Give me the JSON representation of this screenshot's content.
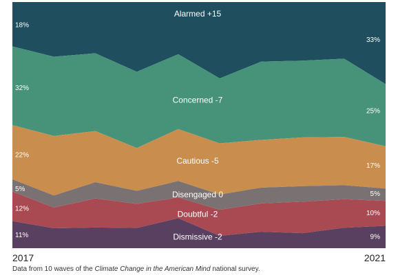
{
  "chart_data": {
    "type": "area",
    "stacked": true,
    "normalized": true,
    "x": [
      1,
      2,
      3,
      4,
      5,
      6,
      7,
      8,
      9,
      10
    ],
    "series": [
      {
        "name": "Alarmed",
        "change_label": "Alarmed +15",
        "color": "#1f4e5e",
        "values": [
          18,
          22.2,
          20.8,
          28.3,
          21.2,
          31,
          24.2,
          23.8,
          23,
          33
        ],
        "start_label": "18%",
        "end_label": "33%"
      },
      {
        "name": "Concerned",
        "change_label": "Concerned -7",
        "color": "#46937a",
        "values": [
          32,
          32.2,
          31.6,
          31,
          30.4,
          26.4,
          31.8,
          31.2,
          31.8,
          25
        ],
        "start_label": "32%",
        "end_label": "25%"
      },
      {
        "name": "Cautious",
        "change_label": "Cautious -5",
        "color": "#c98e4e",
        "values": [
          22,
          24.2,
          20.8,
          17.4,
          21.1,
          20.8,
          19.4,
          19.8,
          19.6,
          17
        ],
        "start_label": "22%",
        "end_label": "17%"
      },
      {
        "name": "Disengaged",
        "change_label": "Disengaged  0",
        "color": "#7a7272",
        "values": [
          5,
          4.9,
          6.6,
          5.3,
          6.7,
          6.2,
          6.4,
          6.3,
          5.7,
          5
        ],
        "start_label": "5%",
        "end_label": "5%"
      },
      {
        "name": "Doubtful",
        "change_label": "Doubtful -2",
        "color": "#a94a53",
        "values": [
          12,
          8.4,
          11.8,
          9.8,
          8.4,
          10.6,
          11.5,
          12.8,
          11.6,
          10
        ],
        "start_label": "12%",
        "end_label": "10%"
      },
      {
        "name": "Dismissive",
        "change_label": "Dismissive -2",
        "color": "#5a4060",
        "values": [
          11,
          8.1,
          8.4,
          8.2,
          12.2,
          5,
          6.7,
          6.1,
          8.3,
          9
        ],
        "start_label": "11%",
        "end_label": "9%"
      }
    ],
    "x_start_label": "2017",
    "x_end_label": "2021",
    "ylim": [
      0,
      100
    ]
  },
  "footnote": {
    "before": "Data from 10 waves of the ",
    "italic": "Climate Change in the American Mind",
    "after": " national survey."
  }
}
